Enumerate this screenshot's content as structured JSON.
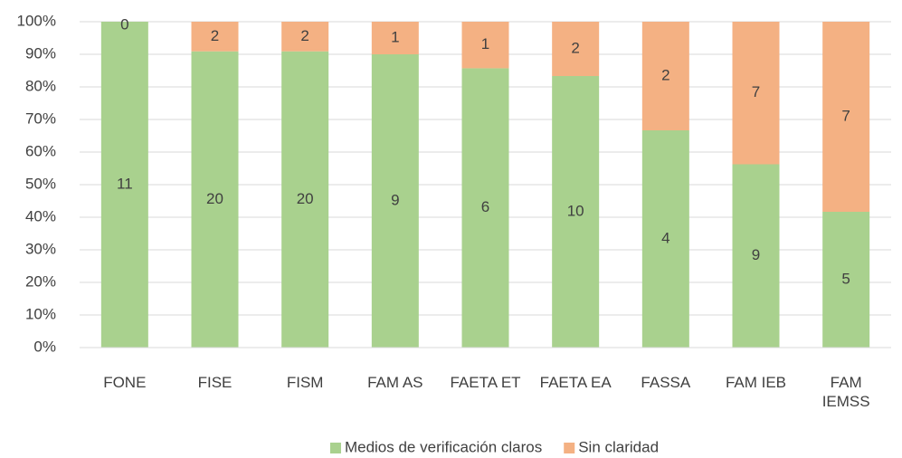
{
  "chart_data": {
    "type": "bar",
    "stacking": "percent",
    "categories": [
      "FONE",
      "FISE",
      "FISM",
      "FAM AS",
      "FAETA ET",
      "FAETA EA",
      "FASSA",
      "FAM IEB",
      "FAM IEMSS"
    ],
    "series": [
      {
        "name": "Medios de verificación claros",
        "color": "#a9d18e",
        "values": [
          11,
          20,
          20,
          9,
          6,
          10,
          4,
          9,
          5
        ]
      },
      {
        "name": "Sin claridad",
        "color": "#f4b183",
        "values": [
          0,
          2,
          2,
          1,
          1,
          2,
          2,
          7,
          7
        ]
      }
    ],
    "ylim": [
      0,
      100
    ],
    "yticks": [
      {
        "value": 0,
        "label": "0%"
      },
      {
        "value": 10,
        "label": "10%"
      },
      {
        "value": 20,
        "label": "20%"
      },
      {
        "value": 30,
        "label": "30%"
      },
      {
        "value": 40,
        "label": "40%"
      },
      {
        "value": 50,
        "label": "50%"
      },
      {
        "value": 60,
        "label": "60%"
      },
      {
        "value": 70,
        "label": "70%"
      },
      {
        "value": 80,
        "label": "80%"
      },
      {
        "value": 90,
        "label": "90%"
      },
      {
        "value": 100,
        "label": "100%"
      }
    ],
    "grid": true,
    "legend": "bottom"
  }
}
